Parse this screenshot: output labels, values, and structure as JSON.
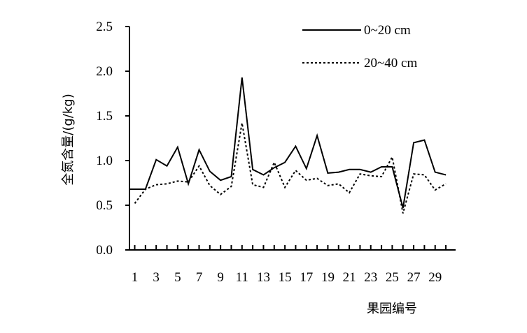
{
  "chart_data": {
    "type": "line",
    "xlabel": "果园编号",
    "ylabel": "全氮含量/(g/kg)",
    "ylim": [
      0,
      2.5
    ],
    "y_ticks": [
      "0.0",
      "0.5",
      "1.0",
      "1.5",
      "2.0",
      "2.5"
    ],
    "x": [
      1,
      2,
      3,
      4,
      5,
      6,
      7,
      8,
      9,
      10,
      11,
      12,
      13,
      14,
      15,
      16,
      17,
      18,
      19,
      20,
      21,
      22,
      23,
      24,
      25,
      26,
      27,
      28,
      29,
      30
    ],
    "x_tick_labels": [
      "1",
      "3",
      "5",
      "7",
      "9",
      "11",
      "13",
      "15",
      "17",
      "19",
      "21",
      "23",
      "25",
      "27",
      "29"
    ],
    "grid": false,
    "legend_position": "top-right",
    "series": [
      {
        "name": "0~20 cm",
        "style": "solid",
        "color": "#000000",
        "values": [
          0.68,
          0.68,
          1.01,
          0.94,
          1.15,
          0.74,
          1.12,
          0.88,
          0.78,
          0.82,
          1.93,
          0.9,
          0.84,
          0.92,
          0.98,
          1.16,
          0.91,
          1.28,
          0.86,
          0.87,
          0.9,
          0.9,
          0.87,
          0.93,
          0.93,
          0.47,
          1.2,
          1.23,
          0.87,
          0.84
        ]
      },
      {
        "name": "20~40 cm",
        "style": "dotted",
        "color": "#000000",
        "values": [
          0.52,
          0.68,
          0.73,
          0.74,
          0.77,
          0.76,
          0.94,
          0.72,
          0.62,
          0.71,
          1.42,
          0.73,
          0.7,
          0.98,
          0.7,
          0.89,
          0.78,
          0.8,
          0.72,
          0.74,
          0.64,
          0.85,
          0.83,
          0.82,
          1.04,
          0.41,
          0.85,
          0.84,
          0.67,
          0.74
        ]
      }
    ]
  }
}
